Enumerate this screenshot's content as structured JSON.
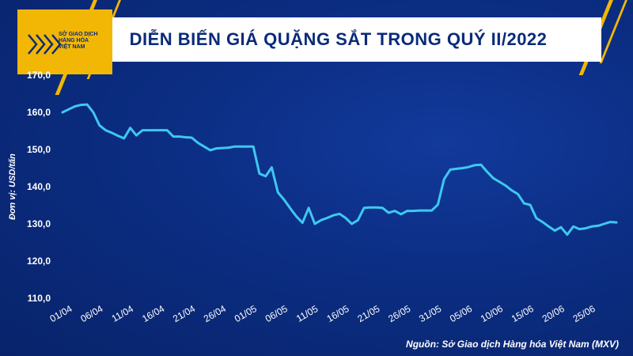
{
  "header": {
    "title": "DIỄN BIẾN GIÁ QUẶNG SẮT TRONG QUÝ II/2022"
  },
  "logo": {
    "lines": [
      "SỞ GIAO DỊCH",
      "HÀNG HÓA",
      "VIỆT NAM"
    ]
  },
  "colors": {
    "background": "#0b2d82",
    "line": "#3fc8f0",
    "accent": "#f2b705"
  },
  "source_note": "Nguồn: Sở Giao dịch Hàng hóa Việt Nam (MXV)",
  "chart_data": {
    "type": "line",
    "title": "DIỄN BIẾN GIÁ QUẶNG SẮT TRONG QUÝ II/2022",
    "ylabel": "Đơn vị: USD/tấn",
    "xlabel": "",
    "ylim": [
      110,
      170
    ],
    "yticks": [
      "110,0",
      "120,0",
      "130,0",
      "140,0",
      "150,0",
      "160,0",
      "170,0"
    ],
    "ytick_values": [
      110,
      120,
      130,
      140,
      150,
      160,
      170
    ],
    "xtick_labels": [
      "01/04",
      "06/04",
      "11/04",
      "16/04",
      "21/04",
      "26/04",
      "01/05",
      "06/05",
      "11/05",
      "16/05",
      "21/05",
      "26/05",
      "31/05",
      "05/06",
      "10/06",
      "15/06",
      "20/06",
      "25/06"
    ],
    "xtick_days": [
      0,
      5,
      10,
      15,
      20,
      25,
      30,
      35,
      40,
      45,
      50,
      55,
      60,
      65,
      70,
      75,
      80,
      85
    ],
    "grid": false,
    "series": [
      {
        "x": [
          0,
          1,
          2,
          3,
          4,
          5,
          6,
          7,
          8,
          9,
          10,
          11,
          12,
          13,
          14,
          15,
          16,
          17,
          18,
          19,
          20,
          21,
          22,
          23,
          24,
          25,
          26,
          27,
          28,
          29,
          30,
          31,
          32,
          33,
          34,
          35,
          36,
          37,
          38,
          39,
          40,
          41,
          42,
          43,
          44,
          45,
          46,
          47,
          48,
          49,
          50,
          51,
          52,
          53,
          54,
          55,
          56,
          57,
          58,
          59,
          60,
          61,
          62,
          63,
          64,
          65,
          66,
          67,
          68,
          69,
          70,
          71,
          72,
          73,
          74,
          75,
          76,
          77,
          78,
          79,
          80,
          81,
          82,
          83,
          84,
          85,
          86,
          87,
          88,
          89,
          90
        ],
        "values": [
          160.0,
          160.8,
          161.6,
          162.0,
          162.1,
          160.0,
          156.5,
          155.2,
          154.5,
          153.7,
          153.0,
          155.8,
          153.8,
          155.2,
          155.2,
          155.2,
          155.2,
          155.2,
          153.5,
          153.5,
          153.3,
          153.2,
          151.8,
          150.8,
          149.8,
          150.3,
          150.4,
          150.5,
          150.8,
          150.8,
          150.8,
          150.8,
          143.5,
          142.8,
          145.2,
          138.5,
          136.5,
          134.2,
          132.0,
          130.3,
          134.3,
          130.0,
          131.0,
          131.6,
          132.3,
          132.7,
          131.6,
          130.0,
          131.0,
          134.3,
          134.4,
          134.4,
          134.3,
          133.0,
          133.5,
          132.6,
          133.5,
          133.5,
          133.6,
          133.6,
          133.6,
          135.2,
          142.0,
          144.6,
          144.8,
          145.0,
          145.3,
          145.8,
          145.9,
          144.0,
          142.3,
          141.3,
          140.3,
          139.0,
          138.0,
          135.5,
          135.1,
          131.5,
          130.5,
          129.3,
          128.2,
          129.1,
          127.1,
          129.3,
          128.6,
          128.8,
          129.3,
          129.5,
          130.0,
          130.5,
          130.4
        ]
      }
    ]
  }
}
